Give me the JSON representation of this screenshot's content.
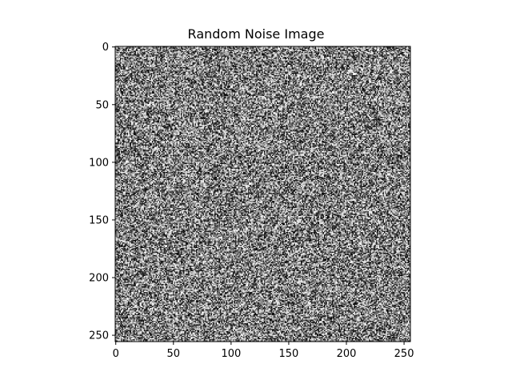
{
  "chart_data": {
    "type": "heatmap",
    "title": "Random Noise Image",
    "xlabel": "",
    "ylabel": "",
    "image_width": 256,
    "image_height": 256,
    "colormap": "gray",
    "value_range": [
      0,
      1
    ],
    "value_distribution": "uniform random",
    "xlim": [
      -0.5,
      255.5
    ],
    "ylim": [
      255.5,
      -0.5
    ],
    "x_ticks": [
      0,
      50,
      100,
      150,
      200,
      250
    ],
    "y_ticks": [
      0,
      50,
      100,
      150,
      200,
      250
    ],
    "x_tick_labels": [
      "0",
      "50",
      "100",
      "150",
      "200",
      "250"
    ],
    "y_tick_labels": [
      "0",
      "50",
      "100",
      "150",
      "200",
      "250"
    ],
    "grid": false,
    "legend": "none"
  }
}
